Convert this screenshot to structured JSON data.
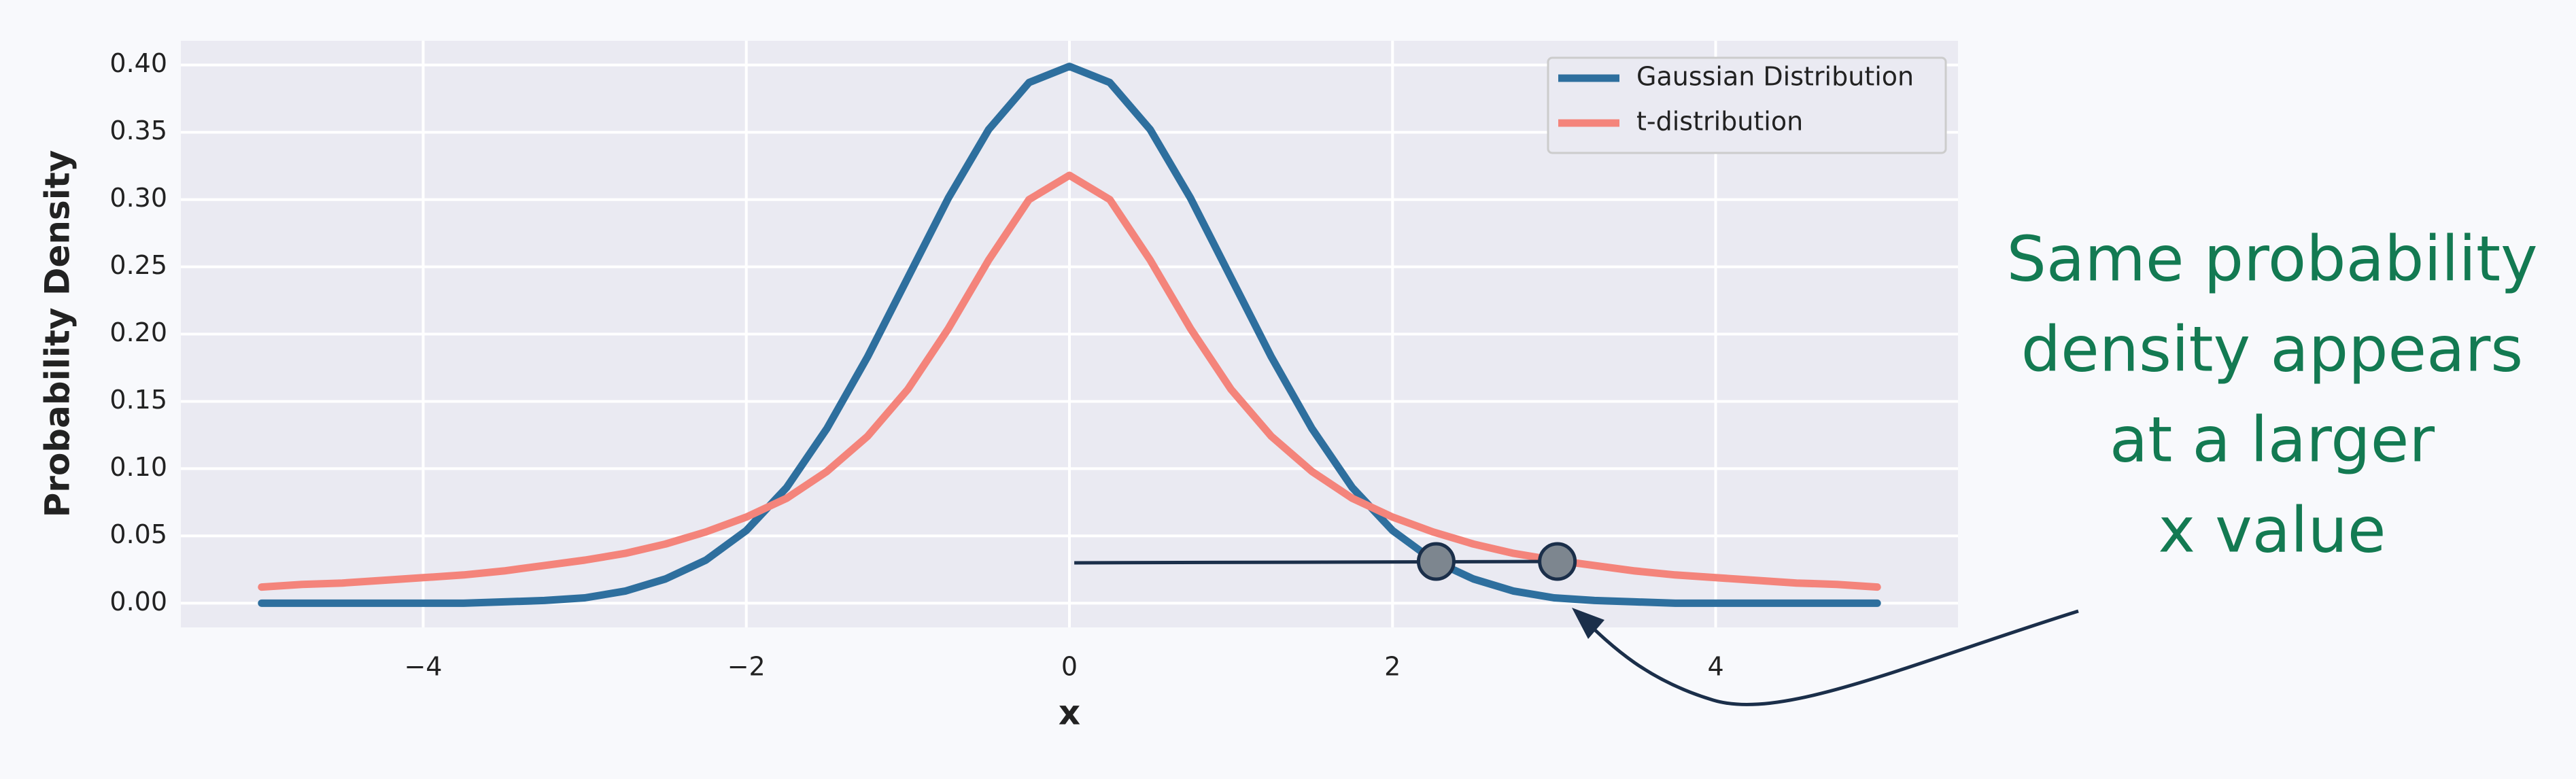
{
  "chart_data": {
    "type": "line",
    "xlabel": "x",
    "ylabel": "Probability Density",
    "x": [
      -5,
      -4.75,
      -4.5,
      -4.25,
      -4,
      -3.75,
      -3.5,
      -3.25,
      -3,
      -2.75,
      -2.5,
      -2.25,
      -2,
      -1.75,
      -1.5,
      -1.25,
      -1,
      -0.75,
      -0.5,
      -0.25,
      0,
      0.25,
      0.5,
      0.75,
      1,
      1.25,
      1.5,
      1.75,
      2,
      2.25,
      2.5,
      2.75,
      3,
      3.25,
      3.5,
      3.75,
      4,
      4.25,
      4.5,
      4.75,
      5
    ],
    "series": [
      {
        "name": "Gaussian Distribution",
        "color": "#2e6f9e",
        "values": [
          0,
          0,
          0,
          0,
          0,
          0,
          0.001,
          0.002,
          0.004,
          0.009,
          0.018,
          0.032,
          0.054,
          0.086,
          0.13,
          0.183,
          0.242,
          0.301,
          0.352,
          0.387,
          0.399,
          0.387,
          0.352,
          0.301,
          0.242,
          0.183,
          0.13,
          0.086,
          0.054,
          0.032,
          0.018,
          0.009,
          0.004,
          0.002,
          0.001,
          0,
          0,
          0,
          0,
          0,
          0
        ]
      },
      {
        "name": "t-distribution",
        "color": "#f4847b",
        "values": [
          0.012,
          0.014,
          0.015,
          0.017,
          0.019,
          0.021,
          0.024,
          0.028,
          0.032,
          0.037,
          0.044,
          0.053,
          0.064,
          0.078,
          0.098,
          0.124,
          0.159,
          0.204,
          0.255,
          0.3,
          0.318,
          0.3,
          0.255,
          0.204,
          0.159,
          0.124,
          0.098,
          0.078,
          0.064,
          0.053,
          0.044,
          0.037,
          0.032,
          0.028,
          0.024,
          0.021,
          0.019,
          0.017,
          0.015,
          0.014,
          0.012
        ]
      }
    ],
    "xlim": [
      -5.5,
      5.5
    ],
    "ylim": [
      -0.018,
      0.418
    ],
    "xticks": [
      {
        "value": -4,
        "label": "−4"
      },
      {
        "value": -2,
        "label": "−2"
      },
      0,
      2,
      4
    ],
    "yticks": [
      {
        "value": 0,
        "label": "0.00"
      },
      {
        "value": 0.05,
        "label": "0.05"
      },
      {
        "value": 0.1,
        "label": "0.10"
      },
      {
        "value": 0.15,
        "label": "0.15"
      },
      {
        "value": 0.2,
        "label": "0.20"
      },
      {
        "value": 0.25,
        "label": "0.25"
      },
      {
        "value": 0.3,
        "label": "0.30"
      },
      {
        "value": 0.35,
        "label": "0.35"
      },
      {
        "value": 0.4,
        "label": "0.40"
      }
    ],
    "grid": true,
    "legend": "upper right",
    "guide_line": {
      "x": [
        0.03,
        3.0
      ],
      "y": [
        0.03,
        0.031
      ],
      "color": "#1b2f4a"
    },
    "markers": {
      "x": [
        2.27,
        3.02
      ],
      "y": [
        0.031,
        0.031
      ],
      "color": "#7d868f"
    },
    "annotation": {
      "lines": [
        "Same probability",
        "density appears",
        "at a larger",
        "x value"
      ],
      "color": "#137a52"
    }
  }
}
